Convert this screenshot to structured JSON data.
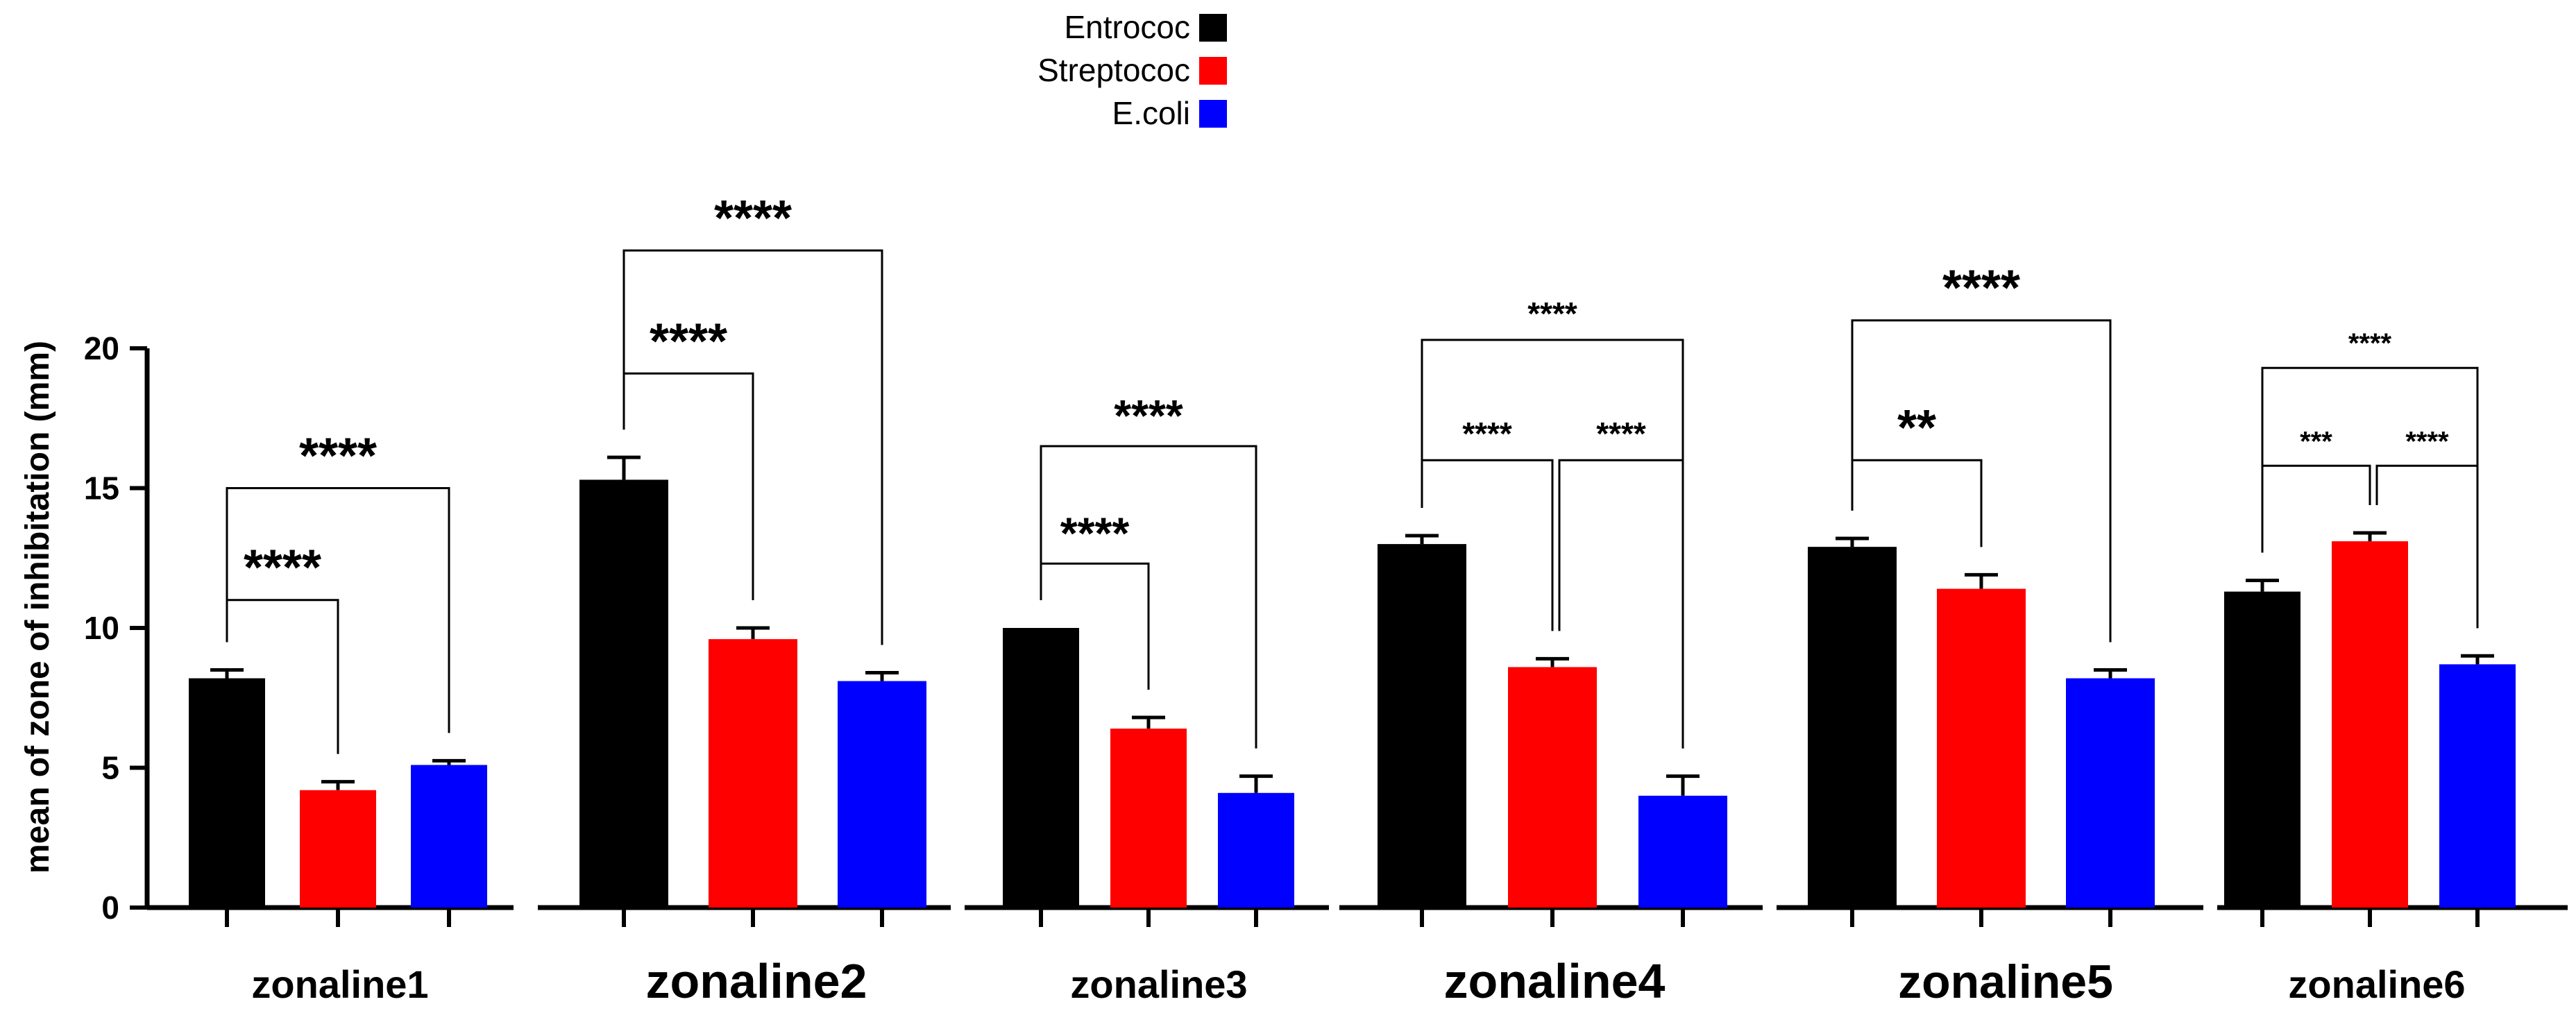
{
  "chart_data": {
    "type": "bar",
    "title": "",
    "xlabel": "",
    "ylabel": "mean of zone of inhibitation (mm)",
    "ylim": [
      0,
      20
    ],
    "yticks": [
      "0",
      "5",
      "10",
      "15",
      "20"
    ],
    "legend": [
      {
        "name": "Entrococ",
        "color": "#000000"
      },
      {
        "name": "Streptococ",
        "color": "#ff0000"
      },
      {
        "name": "E.coli",
        "color": "#0000ff"
      }
    ],
    "groups": [
      {
        "label": "zonaline1",
        "values": [
          8.2,
          4.2,
          5.1
        ],
        "errors": [
          0.3,
          0.3,
          0.15
        ],
        "comparisons": [
          {
            "from": 0,
            "to": 1,
            "level": 11,
            "text": "****"
          },
          {
            "from": 0,
            "to": 2,
            "level": 15,
            "text": "****"
          }
        ]
      },
      {
        "label": "zonaline2",
        "values": [
          15.3,
          9.6,
          8.1
        ],
        "errors": [
          0.8,
          0.4,
          0.3
        ],
        "comparisons": [
          {
            "from": 0,
            "to": 1,
            "level": 19.1,
            "text": "****"
          },
          {
            "from": 0,
            "to": 2,
            "level": 23.5,
            "text": "****"
          }
        ]
      },
      {
        "label": "zonaline3",
        "values": [
          10.0,
          6.4,
          4.1
        ],
        "errors": [
          0.0,
          0.4,
          0.6
        ],
        "comparisons": [
          {
            "from": 0,
            "to": 1,
            "level": 12.3,
            "text": "****"
          },
          {
            "from": 0,
            "to": 2,
            "level": 16.5,
            "text": "****"
          }
        ]
      },
      {
        "label": "zonaline4",
        "values": [
          13.0,
          8.6,
          4.0
        ],
        "errors": [
          0.3,
          0.3,
          0.7
        ],
        "comparisons": [
          {
            "from": 0,
            "to": 1,
            "level": 16.0,
            "text": "****"
          },
          {
            "from": 1,
            "to": 2,
            "level": 16.0,
            "text": "****"
          },
          {
            "from": 0,
            "to": 2,
            "level": 20.3,
            "text": "****"
          }
        ]
      },
      {
        "label": "zonaline5",
        "values": [
          12.9,
          11.4,
          8.2
        ],
        "errors": [
          0.3,
          0.5,
          0.3
        ],
        "comparisons": [
          {
            "from": 0,
            "to": 1,
            "level": 16.0,
            "text": "**"
          },
          {
            "from": 0,
            "to": 2,
            "level": 21.0,
            "text": "****"
          }
        ]
      },
      {
        "label": "zonaline6",
        "values": [
          11.3,
          13.1,
          8.7
        ],
        "errors": [
          0.4,
          0.3,
          0.3
        ],
        "comparisons": [
          {
            "from": 0,
            "to": 1,
            "level": 15.8,
            "text": "***"
          },
          {
            "from": 1,
            "to": 2,
            "level": 15.8,
            "text": "****"
          },
          {
            "from": 0,
            "to": 2,
            "level": 19.3,
            "text": "****"
          }
        ]
      }
    ]
  }
}
